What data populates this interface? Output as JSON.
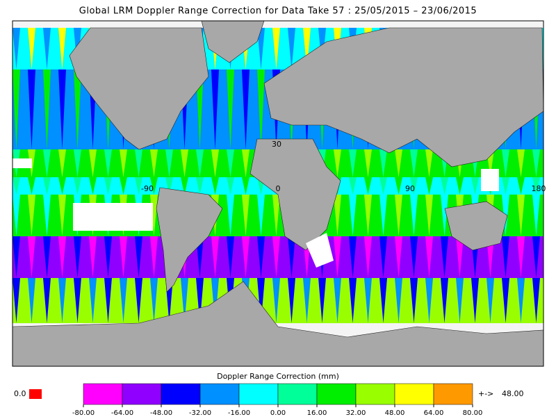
{
  "header": {
    "title": "Global LRM Doppler Range Correction for Data Take 57 : 25/05/2015 – 23/06/2015"
  },
  "map": {
    "grid_labels": [
      "30",
      "-90",
      "0",
      "90",
      "180"
    ]
  },
  "legend": {
    "title": "Doppler Range Correction (mm)",
    "colors": [
      "#ff00ff",
      "#9000ff",
      "#0000ff",
      "#0090ff",
      "#00ffff",
      "#00ff99",
      "#00ee00",
      "#99ff00",
      "#ffff00",
      "#ff9900"
    ],
    "ticks": [
      {
        "value": -80,
        "label": "-80.00"
      },
      {
        "value": -64,
        "label": "-64.00"
      },
      {
        "value": -48,
        "label": "-48.00"
      },
      {
        "value": -32,
        "label": "-32.00"
      },
      {
        "value": -16,
        "label": "-16.00"
      },
      {
        "value": 0,
        "label": "0.00"
      },
      {
        "value": 16,
        "label": "16.00"
      },
      {
        "value": 32,
        "label": "32.00"
      },
      {
        "value": 48,
        "label": "48.00"
      },
      {
        "value": 64,
        "label": "64.00"
      },
      {
        "value": 80,
        "label": "80.00"
      }
    ],
    "underflow_label": "0.0",
    "underflow_color": "#ff0000",
    "overflow_arrow": "+->",
    "overflow_value": "48.00",
    "overflow_color": "#ff9900"
  }
}
